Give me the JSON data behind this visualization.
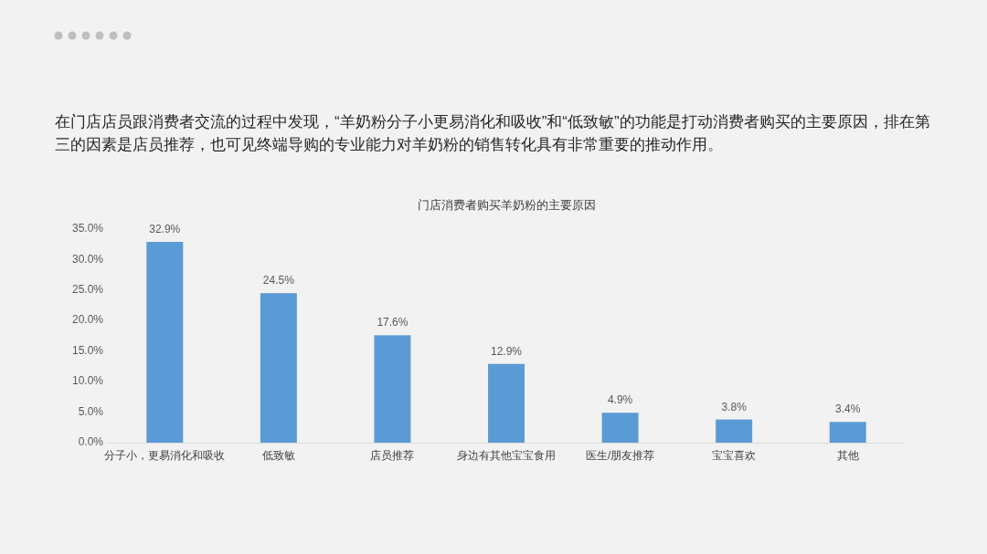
{
  "chart_data": {
    "type": "bar",
    "title": "门店消费者购买羊奶粉的主要原因",
    "annotations": [
      "在门店店员跟消费者交流的过程中发现，“羊奶粉分子小更易消化和吸收”和“低致敏”的功能是打动消费者购买的主要原因，排在第三的因素是店员推荐，也可见终端导购的专业能力对羊奶粉的销售转化具有非常重要的推动作用。"
    ],
    "categories": [
      "分子小，更易消化和吸收",
      "低致敏",
      "店员推荐",
      "身边有其他宝宝食用",
      "医生/朋友推荐",
      "宝宝喜欢",
      "其他"
    ],
    "values": [
      32.9,
      24.5,
      17.6,
      12.9,
      4.9,
      3.8,
      3.4
    ],
    "value_labels": [
      "32.9%",
      "24.5%",
      "17.6%",
      "12.9%",
      "4.9%",
      "3.8%",
      "3.4%"
    ],
    "color": "#5b9bd5",
    "ylim": [
      0,
      35
    ],
    "yticks": [
      {
        "value": 0,
        "label": "0.0%"
      },
      {
        "value": 5,
        "label": "5.0%"
      },
      {
        "value": 10,
        "label": "10.0%"
      },
      {
        "value": 15,
        "label": "15.0%"
      },
      {
        "value": 20,
        "label": "20.0%"
      },
      {
        "value": 25,
        "label": "25.0%"
      },
      {
        "value": 30,
        "label": "30.0%"
      },
      {
        "value": 35,
        "label": "35.0%"
      }
    ]
  }
}
